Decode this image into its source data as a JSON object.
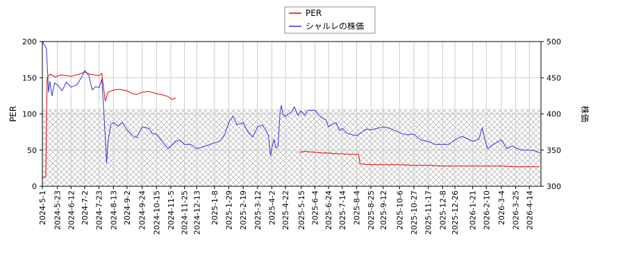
{
  "chart_data": {
    "type": "line",
    "xlabel": "",
    "ylabel_left": "PER",
    "ylabel_right": "株価",
    "ylim_left": [
      0,
      200
    ],
    "ylim_right": [
      300,
      500
    ],
    "yticks_left": [
      "0",
      "50",
      "100",
      "150",
      "200"
    ],
    "yticks_right": [
      "300",
      "350",
      "400",
      "450",
      "500"
    ],
    "grid": true,
    "legend_position": "top",
    "hatched_band_left": [
      0,
      107
    ],
    "x_start": "2024-5-1",
    "x_end": "2026-5-1",
    "x_ticks": [
      "2024-5-1",
      "2024-5-23",
      "2024-6-12",
      "2024-7-2",
      "2024-7-23",
      "2024-8-13",
      "2024-9-2",
      "2024-9-24",
      "2024-10-15",
      "2024-11-5",
      "2024-11-25",
      "2024-12-13",
      "2025-1-8",
      "2025-1-29",
      "2025-2-19",
      "2025-3-12",
      "2025-4-2",
      "2025-4-22",
      "2025-5-15",
      "2025-6-4",
      "2025-6-24",
      "2025-7-14",
      "2025-8-4",
      "2025-8-25",
      "2025-9-12",
      "2025-10-6",
      "2025-10-27",
      "2025-11-17",
      "2025-12-8",
      "2025-12-26",
      "2026-1-21",
      "2026-2-10",
      "2026-3-4",
      "2026-3-25",
      "2026-4-14"
    ],
    "series": [
      {
        "name": "PER",
        "color": "#dd0000",
        "axis": "left",
        "points": [
          [
            "2024-5-1",
            12
          ],
          [
            "2024-5-6",
            13
          ],
          [
            "2024-5-8",
            150
          ],
          [
            "2024-5-12",
            155
          ],
          [
            "2024-5-20",
            151
          ],
          [
            "2024-5-28",
            154
          ],
          [
            "2024-6-5",
            153
          ],
          [
            "2024-6-12",
            152
          ],
          [
            "2024-6-20",
            154
          ],
          [
            "2024-6-27",
            156
          ],
          [
            "2024-7-2",
            158
          ],
          [
            "2024-7-9",
            155
          ],
          [
            "2024-7-16",
            154
          ],
          [
            "2024-7-23",
            153
          ],
          [
            "2024-7-27",
            156
          ],
          [
            "2024-8-1",
            118
          ],
          [
            "2024-8-5",
            130
          ],
          [
            "2024-8-13",
            133
          ],
          [
            "2024-8-22",
            134
          ],
          [
            "2024-9-2",
            132
          ],
          [
            "2024-9-10",
            128
          ],
          [
            "2024-9-16",
            127
          ],
          [
            "2024-9-24",
            130
          ],
          [
            "2024-10-4",
            131
          ],
          [
            "2024-10-15",
            128
          ],
          [
            "2024-10-25",
            126
          ],
          [
            "2024-11-1",
            124
          ],
          [
            "2024-11-7",
            120
          ],
          [
            "2024-11-12",
            122
          ],
          null,
          [
            "2025-5-12",
            47
          ],
          [
            "2025-5-20",
            48
          ],
          [
            "2025-6-4",
            47
          ],
          [
            "2025-6-15",
            46
          ],
          [
            "2025-6-24",
            46
          ],
          [
            "2025-7-5",
            45
          ],
          [
            "2025-7-14",
            45
          ],
          [
            "2025-7-25",
            44
          ],
          [
            "2025-8-4",
            44
          ],
          [
            "2025-8-7",
            44
          ],
          [
            "2025-8-9",
            31
          ],
          [
            "2025-8-25",
            30
          ],
          [
            "2025-9-12",
            30
          ],
          [
            "2025-10-6",
            30
          ],
          [
            "2025-10-27",
            29
          ],
          [
            "2025-11-17",
            29
          ],
          [
            "2025-12-8",
            28
          ],
          [
            "2025-12-26",
            28
          ],
          [
            "2026-1-21",
            28
          ],
          [
            "2026-2-10",
            28
          ],
          [
            "2026-3-4",
            28
          ],
          [
            "2026-3-25",
            27
          ],
          [
            "2026-4-14",
            27
          ],
          [
            "2026-4-28",
            27
          ]
        ]
      },
      {
        "name": "シャルレの株価",
        "color": "#3333cc",
        "axis": "right",
        "points": [
          [
            "2024-5-1",
            500
          ],
          [
            "2024-5-4",
            495
          ],
          [
            "2024-5-7",
            490
          ],
          [
            "2024-5-10",
            430
          ],
          [
            "2024-5-12",
            445
          ],
          [
            "2024-5-15",
            425
          ],
          [
            "2024-5-19",
            443
          ],
          [
            "2024-5-23",
            440
          ],
          [
            "2024-5-30",
            432
          ],
          [
            "2024-6-5",
            444
          ],
          [
            "2024-6-12",
            437
          ],
          [
            "2024-6-20",
            440
          ],
          [
            "2024-6-27",
            450
          ],
          [
            "2024-7-2",
            460
          ],
          [
            "2024-7-8",
            453
          ],
          [
            "2024-7-13",
            433
          ],
          [
            "2024-7-18",
            438
          ],
          [
            "2024-7-23",
            436
          ],
          [
            "2024-7-27",
            448
          ],
          [
            "2024-8-1",
            370
          ],
          [
            "2024-8-3",
            332
          ],
          [
            "2024-8-5",
            360
          ],
          [
            "2024-8-9",
            385
          ],
          [
            "2024-8-13",
            388
          ],
          [
            "2024-8-20",
            383
          ],
          [
            "2024-8-26",
            388
          ],
          [
            "2024-9-2",
            378
          ],
          [
            "2024-9-10",
            370
          ],
          [
            "2024-9-16",
            367
          ],
          [
            "2024-9-24",
            382
          ],
          [
            "2024-10-4",
            380
          ],
          [
            "2024-10-9",
            373
          ],
          [
            "2024-10-15",
            372
          ],
          [
            "2024-10-25",
            360
          ],
          [
            "2024-11-1",
            352
          ],
          [
            "2024-11-5",
            355
          ],
          [
            "2024-11-12",
            362
          ],
          [
            "2024-11-18",
            364
          ],
          [
            "2024-11-25",
            358
          ],
          [
            "2024-12-4",
            358
          ],
          [
            "2024-12-13",
            352
          ],
          [
            "2024-12-24",
            355
          ],
          [
            "2025-1-8",
            360
          ],
          [
            "2025-1-17",
            363
          ],
          [
            "2025-1-23",
            372
          ],
          [
            "2025-1-29",
            388
          ],
          [
            "2025-2-4",
            397
          ],
          [
            "2025-2-10",
            385
          ],
          [
            "2025-2-19",
            388
          ],
          [
            "2025-2-26",
            375
          ],
          [
            "2025-3-5",
            368
          ],
          [
            "2025-3-12",
            382
          ],
          [
            "2025-3-19",
            385
          ],
          [
            "2025-3-24",
            378
          ],
          [
            "2025-3-28",
            370
          ],
          [
            "2025-3-31",
            342
          ],
          [
            "2025-4-2",
            353
          ],
          [
            "2025-4-5",
            365
          ],
          [
            "2025-4-8",
            353
          ],
          [
            "2025-4-11",
            355
          ],
          [
            "2025-4-14",
            402
          ],
          [
            "2025-4-16",
            412
          ],
          [
            "2025-4-18",
            400
          ],
          [
            "2025-4-22",
            396
          ],
          [
            "2025-4-26",
            400
          ],
          [
            "2025-5-1",
            403
          ],
          [
            "2025-5-5",
            410
          ],
          [
            "2025-5-10",
            398
          ],
          [
            "2025-5-15",
            404
          ],
          [
            "2025-5-20",
            398
          ],
          [
            "2025-5-25",
            405
          ],
          [
            "2025-6-4",
            405
          ],
          [
            "2025-6-10",
            398
          ],
          [
            "2025-6-15",
            394
          ],
          [
            "2025-6-20",
            392
          ],
          [
            "2025-6-24",
            382
          ],
          [
            "2025-6-30",
            386
          ],
          [
            "2025-7-5",
            388
          ],
          [
            "2025-7-10",
            377
          ],
          [
            "2025-7-14",
            380
          ],
          [
            "2025-7-20",
            374
          ],
          [
            "2025-7-25",
            372
          ],
          [
            "2025-8-4",
            370
          ],
          [
            "2025-8-12",
            375
          ],
          [
            "2025-8-19",
            379
          ],
          [
            "2025-8-25",
            378
          ],
          [
            "2025-9-3",
            380
          ],
          [
            "2025-9-12",
            382
          ],
          [
            "2025-9-22",
            380
          ],
          [
            "2025-10-6",
            374
          ],
          [
            "2025-10-16",
            371
          ],
          [
            "2025-10-27",
            372
          ],
          [
            "2025-11-6",
            364
          ],
          [
            "2025-11-17",
            362
          ],
          [
            "2025-11-27",
            358
          ],
          [
            "2025-12-8",
            358
          ],
          [
            "2025-12-17",
            358
          ],
          [
            "2025-12-26",
            364
          ],
          [
            "2026-1-5",
            369
          ],
          [
            "2026-1-13",
            366
          ],
          [
            "2026-1-21",
            362
          ],
          [
            "2026-1-30",
            365
          ],
          [
            "2026-2-4",
            381
          ],
          [
            "2026-2-8",
            364
          ],
          [
            "2026-2-12",
            352
          ],
          [
            "2026-2-20",
            358
          ],
          [
            "2026-3-4",
            364
          ],
          [
            "2026-3-12",
            352
          ],
          [
            "2026-3-20",
            356
          ],
          [
            "2026-3-25",
            353
          ],
          [
            "2026-4-3",
            350
          ],
          [
            "2026-4-14",
            350
          ],
          [
            "2026-4-22",
            349
          ],
          [
            "2026-4-30",
            346
          ]
        ]
      }
    ]
  }
}
